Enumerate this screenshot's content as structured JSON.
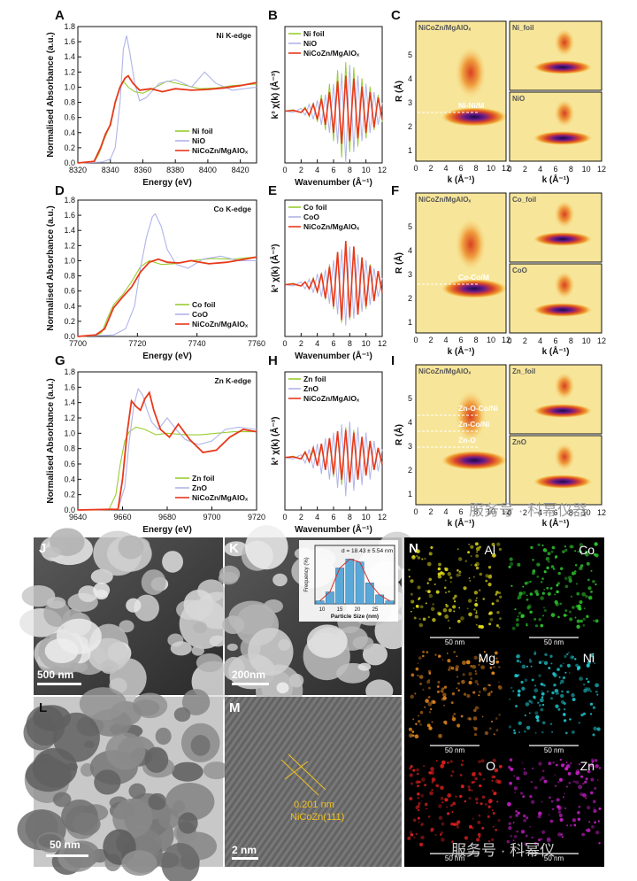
{
  "panel_labels": {
    "A": "A",
    "B": "B",
    "C": "C",
    "D": "D",
    "E": "E",
    "F": "F",
    "G": "G",
    "H": "H",
    "I": "I",
    "J": "J",
    "K": "K",
    "L": "L",
    "M": "M",
    "N": "N"
  },
  "colors": {
    "foil": "#9acd32",
    "oxide": "#b0b4e8",
    "sample": "#e8381a"
  },
  "chart_data": [
    {
      "id": "A",
      "type": "line",
      "edge": "Ni K-edge",
      "xlabel": "Energy (eV)",
      "ylabel": "Normalised  Absorbance (a.u.)",
      "xlim": [
        8320,
        8430
      ],
      "ylim": [
        0,
        1.8
      ],
      "xticks": [
        "8320",
        "8340",
        "8360",
        "8380",
        "8400",
        "8420"
      ],
      "yticks": [
        "0.0",
        "0.2",
        "0.4",
        "0.6",
        "0.8",
        "1.0",
        "1.2",
        "1.4",
        "1.6",
        "1.8"
      ],
      "legend": [
        "Ni foil",
        "NiO",
        "NiCoZn/MgAlOₓ"
      ],
      "series": [
        {
          "name": "Ni foil",
          "x": [
            8320,
            8330,
            8333,
            8336,
            8339,
            8342,
            8345,
            8348,
            8351,
            8355,
            8360,
            8368,
            8375,
            8385,
            8395,
            8405,
            8415,
            8430
          ],
          "y": [
            0,
            0.01,
            0.12,
            0.3,
            0.45,
            0.7,
            0.95,
            1.08,
            1.0,
            0.94,
            0.92,
            1.0,
            1.08,
            1.03,
            0.98,
            0.99,
            1.02,
            1.04
          ]
        },
        {
          "name": "NiO",
          "x": [
            8320,
            8335,
            8340,
            8343,
            8346,
            8348,
            8350,
            8352,
            8355,
            8358,
            8362,
            8370,
            8380,
            8390,
            8398,
            8405,
            8415,
            8430
          ],
          "y": [
            0,
            0.01,
            0.05,
            0.2,
            0.8,
            1.5,
            1.68,
            1.45,
            1.05,
            0.82,
            0.86,
            1.05,
            1.1,
            1.0,
            1.2,
            1.05,
            0.96,
            1.0
          ]
        },
        {
          "name": "NiCoZn/MgAlOₓ",
          "x": [
            8320,
            8330,
            8334,
            8337,
            8340,
            8343,
            8346,
            8349,
            8351,
            8354,
            8358,
            8365,
            8372,
            8380,
            8390,
            8400,
            8410,
            8420,
            8430
          ],
          "y": [
            0,
            0.02,
            0.2,
            0.38,
            0.5,
            0.8,
            1.0,
            1.12,
            1.15,
            1.05,
            0.96,
            0.98,
            0.94,
            0.98,
            0.96,
            0.97,
            0.99,
            1.02,
            1.06
          ]
        }
      ]
    },
    {
      "id": "B",
      "type": "line",
      "xlabel": "Wavenumber (Å⁻¹)",
      "ylabel": "k³ χ(k) (Å⁻³)",
      "xlim": [
        0,
        12
      ],
      "xticks": [
        "0",
        "2",
        "4",
        "6",
        "8",
        "10",
        "12"
      ],
      "legend": [
        "Ni foil",
        "NiO",
        "NiCoZn/MgAlOₓ"
      ],
      "series": [
        {
          "name": "Ni foil",
          "x": [
            0,
            1,
            2,
            2.5,
            3,
            3.5,
            4,
            4.5,
            5,
            5.5,
            6,
            6.5,
            7,
            7.5,
            8,
            8.5,
            9,
            9.5,
            10,
            10.5,
            11,
            11.5,
            12
          ],
          "y": [
            0,
            0.1,
            -0.1,
            0.3,
            -0.4,
            0.6,
            -0.8,
            1.2,
            -1.4,
            2.0,
            -2.2,
            3.0,
            -3.4,
            3.6,
            -3.0,
            3.2,
            -2.6,
            2.4,
            -2.0,
            1.8,
            -1.4,
            1.2,
            -0.8
          ]
        },
        {
          "name": "NiO",
          "x": [
            0,
            1,
            2,
            2.5,
            3,
            3.5,
            4,
            4.5,
            5,
            5.5,
            6,
            6.5,
            7,
            7.5,
            8,
            8.5,
            9,
            9.5,
            10,
            10.5,
            11,
            11.5,
            12
          ],
          "y": [
            0,
            -0.1,
            0.2,
            -0.3,
            0.5,
            -0.6,
            0.8,
            -1.0,
            1.2,
            -1.6,
            2.0,
            -2.4,
            2.8,
            -3.8,
            3.4,
            -3.0,
            2.6,
            -2.2,
            2.0,
            -1.6,
            1.4,
            -1.0,
            0.6
          ]
        },
        {
          "name": "NiCoZn/MgAlOₓ",
          "x": [
            0,
            1,
            2,
            2.5,
            3,
            3.5,
            4,
            4.5,
            5,
            5.5,
            6,
            6.5,
            7,
            7.5,
            8,
            8.5,
            9,
            9.5,
            10,
            10.5,
            11,
            11.5,
            12
          ],
          "y": [
            0,
            0.05,
            -0.1,
            0.2,
            -0.3,
            0.5,
            -0.6,
            0.9,
            -1.0,
            1.4,
            -1.6,
            2.2,
            -2.4,
            2.6,
            -2.2,
            2.4,
            -2.0,
            1.8,
            -1.6,
            1.4,
            -1.2,
            1.0,
            -0.6
          ]
        }
      ]
    },
    {
      "id": "D",
      "type": "line",
      "edge": "Co K-edge",
      "xlabel": "Energy (eV)",
      "ylabel": "Normalised  Absorbance (a.u.)",
      "xlim": [
        7700,
        7760
      ],
      "ylim": [
        0,
        1.8
      ],
      "xticks": [
        "7700",
        "7720",
        "7740",
        "7760"
      ],
      "yticks": [
        "0.0",
        "0.2",
        "0.4",
        "0.6",
        "0.8",
        "1.0",
        "1.2",
        "1.4",
        "1.6",
        "1.8"
      ],
      "legend": [
        "Co foil",
        "CoO",
        "NiCoZn/MgAlOₓ"
      ],
      "series": [
        {
          "name": "Co foil",
          "x": [
            7700,
            7706,
            7708,
            7710,
            7712,
            7715,
            7718,
            7721,
            7724,
            7728,
            7732,
            7738,
            7745,
            7752,
            7760
          ],
          "y": [
            0,
            0.01,
            0.05,
            0.25,
            0.42,
            0.55,
            0.72,
            0.92,
            1.0,
            0.95,
            0.96,
            1.0,
            1.03,
            1.02,
            1.05
          ]
        },
        {
          "name": "CoO",
          "x": [
            7700,
            7712,
            7716,
            7719,
            7721,
            7723,
            7725,
            7726,
            7728,
            7730,
            7733,
            7737,
            7742,
            7748,
            7754,
            7760
          ],
          "y": [
            0,
            0.02,
            0.1,
            0.4,
            0.9,
            1.3,
            1.58,
            1.62,
            1.45,
            1.15,
            0.95,
            0.9,
            1.02,
            1.06,
            1.0,
            1.0
          ]
        },
        {
          "name": "NiCoZn/MgAlOₓ",
          "x": [
            7700,
            7706,
            7709,
            7712,
            7715,
            7718,
            7721,
            7724,
            7727,
            7730,
            7734,
            7738,
            7744,
            7750,
            7756,
            7760
          ],
          "y": [
            0,
            0.02,
            0.1,
            0.38,
            0.52,
            0.65,
            0.85,
            0.98,
            1.02,
            0.98,
            0.97,
            1.0,
            0.96,
            0.98,
            1.02,
            1.05
          ]
        }
      ]
    },
    {
      "id": "E",
      "type": "line",
      "xlabel": "Wavenumber (Å⁻¹)",
      "ylabel": "k³ χ(k) (Å⁻³)",
      "xlim": [
        0,
        12
      ],
      "xticks": [
        "0",
        "2",
        "4",
        "6",
        "8",
        "10",
        "12"
      ],
      "legend": [
        "Co foil",
        "CoO",
        "NiCoZn/MgAlOₓ"
      ],
      "series": [
        {
          "name": "Co foil",
          "x": [
            0,
            1,
            2,
            2.5,
            3,
            3.5,
            4,
            4.5,
            5,
            5.5,
            6,
            6.5,
            7,
            7.5,
            8,
            8.5,
            9,
            9.5,
            10,
            10.5,
            11,
            11.5,
            12
          ],
          "y": [
            0,
            0.1,
            -0.1,
            0.2,
            -0.3,
            0.5,
            -0.6,
            0.9,
            -1.1,
            1.5,
            -1.8,
            2.4,
            -2.8,
            3.0,
            -2.6,
            2.8,
            -2.2,
            2.0,
            -1.8,
            1.5,
            -1.2,
            1.0,
            -0.6
          ]
        },
        {
          "name": "CoO",
          "x": [
            0,
            1,
            2,
            2.5,
            3,
            3.5,
            4,
            4.5,
            5,
            5.5,
            6,
            6.5,
            7,
            7.5,
            8,
            8.5,
            9,
            9.5,
            10,
            10.5,
            11,
            11.5,
            12
          ],
          "y": [
            0,
            -0.1,
            0.2,
            -0.3,
            0.4,
            -0.6,
            0.8,
            -0.9,
            1.1,
            -1.4,
            1.8,
            -2.2,
            2.6,
            -3.0,
            2.8,
            -2.5,
            2.2,
            -2.0,
            1.8,
            -1.5,
            1.2,
            -0.9,
            0.5
          ]
        },
        {
          "name": "NiCoZn/MgAlOₓ",
          "x": [
            0,
            1,
            2,
            2.5,
            3,
            3.5,
            4,
            4.5,
            5,
            5.5,
            6,
            6.5,
            7,
            7.5,
            8,
            8.5,
            9,
            9.5,
            10,
            10.5,
            11,
            11.5,
            12
          ],
          "y": [
            0,
            0.05,
            -0.1,
            0.2,
            -0.3,
            0.4,
            -0.5,
            0.8,
            -1.0,
            1.3,
            -1.6,
            2.4,
            -2.6,
            3.2,
            -2.4,
            2.8,
            -2.2,
            2.0,
            -1.6,
            1.4,
            -1.2,
            1.0,
            -0.6
          ]
        }
      ]
    },
    {
      "id": "G",
      "type": "line",
      "edge": "Zn K-edge",
      "xlabel": "Energy (eV)",
      "ylabel": "Normalised  Absorbance (a.u.)",
      "xlim": [
        9640,
        9720
      ],
      "ylim": [
        0,
        1.8
      ],
      "xticks": [
        "9640",
        "9660",
        "9680",
        "9700",
        "9720"
      ],
      "yticks": [
        "0.0",
        "0.2",
        "0.4",
        "0.6",
        "0.8",
        "1.0",
        "1.2",
        "1.4",
        "1.6",
        "1.8"
      ],
      "legend": [
        "Zn foil",
        "ZnO",
        "NiCoZn/MgAlOₓ"
      ],
      "series": [
        {
          "name": "Zn foil",
          "x": [
            9640,
            9654,
            9657,
            9659,
            9661,
            9663,
            9666,
            9670,
            9675,
            9680,
            9688,
            9695,
            9702,
            9710,
            9720
          ],
          "y": [
            0,
            0.01,
            0.2,
            0.6,
            0.9,
            1.02,
            1.08,
            1.05,
            0.98,
            1.0,
            0.98,
            0.98,
            1.0,
            1.02,
            1.02
          ]
        },
        {
          "name": "ZnO",
          "x": [
            9640,
            9658,
            9661,
            9663,
            9665,
            9667,
            9669,
            9671,
            9673,
            9676,
            9680,
            9684,
            9688,
            9694,
            9700,
            9706,
            9712,
            9720
          ],
          "y": [
            0,
            0.01,
            0.3,
            0.9,
            1.35,
            1.58,
            1.5,
            1.3,
            1.15,
            1.05,
            1.2,
            1.05,
            0.92,
            0.85,
            0.9,
            1.05,
            1.08,
            1.05
          ]
        },
        {
          "name": "NiCoZn/MgAlOₓ",
          "x": [
            9640,
            9658,
            9660,
            9662,
            9664,
            9666,
            9668,
            9670,
            9672,
            9674,
            9677,
            9681,
            9685,
            9690,
            9696,
            9702,
            9708,
            9714,
            9720
          ],
          "y": [
            0,
            0.01,
            0.4,
            1.0,
            1.42,
            1.35,
            1.3,
            1.45,
            1.53,
            1.3,
            1.05,
            0.95,
            1.12,
            0.92,
            0.75,
            0.78,
            0.95,
            1.05,
            1.02
          ]
        }
      ]
    },
    {
      "id": "H",
      "type": "line",
      "xlabel": "Wavenumber (Å⁻¹)",
      "ylabel": "k³ χ(k) (Å⁻³)",
      "xlim": [
        0,
        12
      ],
      "xticks": [
        "0",
        "2",
        "4",
        "6",
        "8",
        "10",
        "12"
      ],
      "legend": [
        "Zn foil",
        "ZnO",
        "NiCoZn/MgAlOₓ"
      ],
      "series": [
        {
          "name": "Zn foil",
          "x": [
            0,
            1,
            2,
            2.5,
            3,
            3.5,
            4,
            4.5,
            5,
            5.5,
            6,
            6.5,
            7,
            7.5,
            8,
            8.5,
            9,
            9.5,
            10,
            10.5,
            11,
            11.5,
            12
          ],
          "y": [
            0,
            0.1,
            -0.1,
            0.3,
            -0.3,
            0.5,
            -0.5,
            0.8,
            -0.9,
            1.2,
            -1.4,
            1.8,
            -2.0,
            2.2,
            -1.8,
            2.0,
            -1.6,
            1.5,
            -1.2,
            1.0,
            -0.8,
            0.6,
            -0.4
          ]
        },
        {
          "name": "ZnO",
          "x": [
            0,
            1,
            2,
            2.5,
            3,
            3.5,
            4,
            4.5,
            5,
            5.5,
            6,
            6.5,
            7,
            7.5,
            8,
            8.5,
            9,
            9.5,
            10,
            10.5,
            11,
            11.5,
            12
          ],
          "y": [
            0,
            -0.1,
            0.2,
            -0.4,
            0.6,
            -0.8,
            1.0,
            -1.2,
            1.4,
            -1.6,
            1.8,
            -2.2,
            2.4,
            -2.8,
            2.6,
            -2.4,
            2.2,
            -2.0,
            1.8,
            -1.6,
            1.2,
            -1.0,
            0.6
          ]
        },
        {
          "name": "NiCoZn/MgAlOₓ",
          "x": [
            0,
            1,
            2,
            2.5,
            3,
            3.5,
            4,
            4.5,
            5,
            5.5,
            6,
            6.5,
            7,
            7.5,
            8,
            8.5,
            9,
            9.5,
            10,
            10.5,
            11,
            11.5,
            12
          ],
          "y": [
            0,
            0.05,
            -0.1,
            0.4,
            -0.3,
            0.7,
            -0.6,
            1.0,
            -0.9,
            1.4,
            -1.2,
            1.9,
            -1.6,
            2.0,
            -1.8,
            1.8,
            -1.6,
            1.5,
            -1.3,
            1.2,
            -0.9,
            0.7,
            -0.5
          ]
        }
      ]
    },
    {
      "id": "K-inset",
      "type": "bar",
      "title": "d = 18.43 ± 5.54 nm",
      "xlabel": "Particle Size (nm)",
      "ylabel": "Frequency (%)",
      "categories": [
        "10",
        "15",
        "20",
        "25"
      ],
      "x": [
        10,
        12.5,
        15,
        17.5,
        20,
        22.5,
        25,
        27.5
      ],
      "values": [
        2,
        8,
        24,
        30,
        28,
        14,
        6,
        2
      ]
    }
  ],
  "wavelet": {
    "k_label": "k (Å⁻¹)",
    "r_label": "R (Å)",
    "k_ticks": [
      "0",
      "2",
      "4",
      "6",
      "8",
      "10",
      "12"
    ],
    "r_ticks": [
      "1",
      "2",
      "3",
      "4",
      "5"
    ],
    "C": {
      "main": "NiCoZn/MgAlOₓ",
      "top": "Ni_foil",
      "bottom": "NiO",
      "annotations": [
        "Ni-Ni/M"
      ]
    },
    "F": {
      "main": "NiCoZn/MgAlOₓ",
      "top": "Co_foil",
      "bottom": "CoO",
      "annotations": [
        "Co-Co/M"
      ]
    },
    "I": {
      "main": "NiCoZn/MgAlOₓ",
      "top": "Zn_foil",
      "bottom": "ZnO",
      "annotations": [
        "Zn-O-Co/Ni",
        "Zn-Co/Ni",
        "Zn-O"
      ]
    }
  },
  "micrographs": {
    "J": {
      "scale": "500 nm"
    },
    "K": {
      "scale": "200nm"
    },
    "L": {
      "scale": "50 nm"
    },
    "M": {
      "scale": "2 nm",
      "spacing": "0.201 nm",
      "plane": "NiCoZn(111)"
    }
  },
  "eds": {
    "scale": "50 nm",
    "maps": [
      {
        "element": "Al",
        "color": "#e6e020"
      },
      {
        "element": "Co",
        "color": "#30d030"
      },
      {
        "element": "Mg",
        "color": "#e88a20"
      },
      {
        "element": "Ni",
        "color": "#20d0d8"
      },
      {
        "element": "O",
        "color": "#e02020"
      },
      {
        "element": "Zn",
        "color": "#d020d0"
      }
    ]
  },
  "watermark": {
    "top": "服务号 · 科幂仪器",
    "bottom": "服务号 · 科幂仪"
  }
}
